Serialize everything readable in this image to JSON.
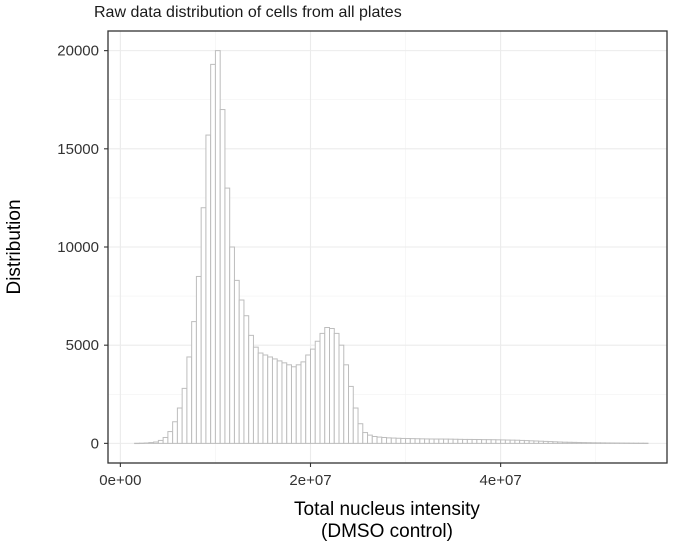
{
  "chart_data": {
    "type": "bar",
    "title": "Raw data distribution of cells from all plates",
    "xlabel_lines": [
      "Total nucleus intensity",
      "(DMSO control)"
    ],
    "ylabel": "Distribution",
    "xlim": [
      -1300000,
      57500000
    ],
    "ylim": [
      -1000,
      21000
    ],
    "x_ticks": [
      0,
      20000000,
      40000000
    ],
    "x_tick_labels": [
      "0e+00",
      "2e+07",
      "4e+07"
    ],
    "y_ticks": [
      0,
      5000,
      10000,
      15000,
      20000
    ],
    "y_tick_labels": [
      "0",
      "5000",
      "10000",
      "15000",
      "20000"
    ],
    "grid": true,
    "bin_width": 500000,
    "bin_start": 1500000,
    "values": [
      5,
      10,
      20,
      40,
      70,
      150,
      300,
      600,
      1100,
      1800,
      2800,
      4400,
      6200,
      8500,
      12000,
      15700,
      19300,
      20000,
      17000,
      13000,
      10000,
      8300,
      7300,
      6500,
      5500,
      4900,
      4600,
      4500,
      4400,
      4300,
      4200,
      4100,
      4000,
      3900,
      4000,
      4150,
      4500,
      4800,
      5200,
      5600,
      5900,
      5850,
      5600,
      5000,
      4000,
      2900,
      1800,
      1000,
      550,
      420,
      350,
      320,
      300,
      280,
      270,
      260,
      250,
      245,
      240,
      235,
      230,
      225,
      222,
      220,
      220,
      218,
      215,
      210,
      205,
      200,
      200,
      198,
      195,
      190,
      188,
      185,
      180,
      175,
      170,
      165,
      160,
      150,
      140,
      130,
      120,
      110,
      100,
      90,
      80,
      70,
      60,
      55,
      50,
      45,
      40,
      35,
      30,
      28,
      25,
      22,
      20,
      18,
      16,
      14,
      12,
      10,
      9,
      8
    ]
  }
}
